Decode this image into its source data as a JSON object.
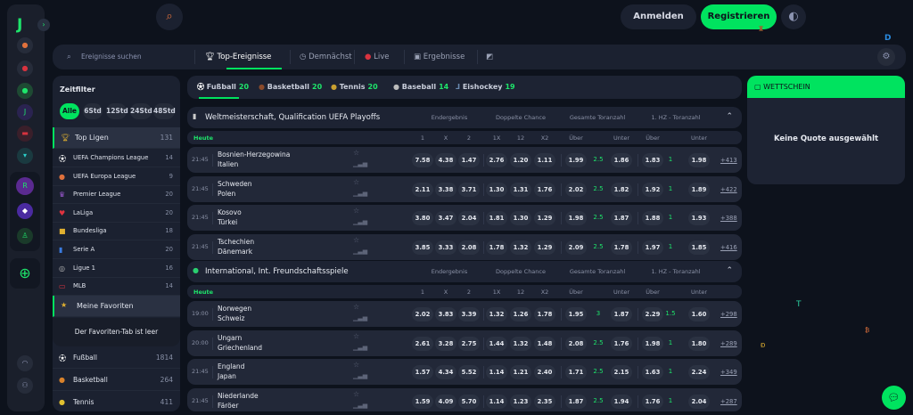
{
  "header": {
    "login": "Anmelden",
    "register": "Registrieren"
  },
  "nav": {
    "search_placeholder": "Ereignisse suchen",
    "tabs": [
      {
        "label": "Top-Ereignisse",
        "icon": "trophy-icon",
        "active": true
      },
      {
        "label": "Demnächst",
        "icon": "clock-icon"
      },
      {
        "label": "Live",
        "icon": "live-dot-icon"
      },
      {
        "label": "Ergebnisse",
        "icon": "results-icon"
      }
    ]
  },
  "sidebar": {
    "title": "Zeitfilter",
    "filters": [
      "Alle",
      "6Std",
      "12Std",
      "24Std",
      "48Std"
    ],
    "top_leagues": {
      "label": "Top Ligen",
      "count": "131"
    },
    "leagues": [
      {
        "name": "UEFA Champions League",
        "count": "14"
      },
      {
        "name": "UEFA Europa League",
        "count": "9"
      },
      {
        "name": "Premier League",
        "count": "20"
      },
      {
        "name": "LaLiga",
        "count": "20"
      },
      {
        "name": "Bundesliga",
        "count": "18"
      },
      {
        "name": "Serie A",
        "count": "20"
      },
      {
        "name": "Ligue 1",
        "count": "16"
      },
      {
        "name": "MLB",
        "count": "14"
      }
    ],
    "favorites": {
      "label": "Meine Favoriten",
      "empty": "Der Favoriten-Tab ist leer"
    },
    "sports": [
      {
        "name": "Fußball",
        "count": "1814"
      },
      {
        "name": "Basketball",
        "count": "264"
      },
      {
        "name": "Tennis",
        "count": "411"
      }
    ]
  },
  "sport_tabs": [
    {
      "name": "Fußball",
      "count": "20",
      "active": true
    },
    {
      "name": "Basketball",
      "count": "20"
    },
    {
      "name": "Tennis",
      "count": "20"
    },
    {
      "name": "Baseball",
      "count": "14"
    },
    {
      "name": "Eishockey",
      "count": "19"
    }
  ],
  "markets": [
    "Endergebnis",
    "Doppelte Chance",
    "Gesamte Toranzahl",
    "1. HZ - Toranzahl"
  ],
  "columns": [
    "1",
    "X",
    "2",
    "1X",
    "12",
    "X2",
    "Über",
    "Unter",
    "Über",
    "Unter"
  ],
  "today_label": "Heute",
  "sections": [
    {
      "title": "Weltmeisterschaft, Qualification UEFA Playoffs",
      "matches": [
        {
          "time": "21:45",
          "home": "Bosnien-Herzegowina",
          "away": "Italien",
          "odds": [
            "7.58",
            "4.38",
            "1.47",
            "2.76",
            "1.20",
            "1.11",
            "1.99",
            "2.5",
            "1.86",
            "1.83",
            "1",
            "1.98"
          ],
          "more": "+413"
        },
        {
          "time": "21:45",
          "home": "Schweden",
          "away": "Polen",
          "odds": [
            "2.11",
            "3.38",
            "3.71",
            "1.30",
            "1.31",
            "1.76",
            "2.02",
            "2.5",
            "1.82",
            "1.92",
            "1",
            "1.89"
          ],
          "more": "+422"
        },
        {
          "time": "21:45",
          "home": "Kosovo",
          "away": "Türkei",
          "odds": [
            "3.80",
            "3.47",
            "2.04",
            "1.81",
            "1.30",
            "1.29",
            "1.98",
            "2.5",
            "1.87",
            "1.88",
            "1",
            "1.93"
          ],
          "more": "+388"
        },
        {
          "time": "21:45",
          "home": "Tschechien",
          "away": "Dänemark",
          "odds": [
            "3.85",
            "3.33",
            "2.08",
            "1.78",
            "1.32",
            "1.29",
            "2.09",
            "2.5",
            "1.78",
            "1.97",
            "1",
            "1.85"
          ],
          "more": "+416"
        }
      ]
    },
    {
      "title": "International, Int. Freundschaftsspiele",
      "matches": [
        {
          "time": "19:00",
          "home": "Norwegen",
          "away": "Schweiz",
          "odds": [
            "2.02",
            "3.83",
            "3.39",
            "1.32",
            "1.26",
            "1.78",
            "1.95",
            "3",
            "1.87",
            "2.29",
            "1.5",
            "1.60"
          ],
          "more": "+298"
        },
        {
          "time": "20:00",
          "home": "Ungarn",
          "away": "Griechenland",
          "odds": [
            "2.61",
            "3.28",
            "2.75",
            "1.44",
            "1.32",
            "1.48",
            "2.08",
            "2.5",
            "1.76",
            "1.98",
            "1",
            "1.80"
          ],
          "more": "+289"
        },
        {
          "time": "21:45",
          "home": "England",
          "away": "Japan",
          "odds": [
            "1.57",
            "4.34",
            "5.52",
            "1.14",
            "1.21",
            "2.40",
            "1.71",
            "2.5",
            "2.15",
            "1.63",
            "1",
            "2.24"
          ],
          "more": "+349"
        },
        {
          "time": "21:45",
          "home": "Niederlande",
          "away": "Färöer",
          "odds": [
            "1.59",
            "4.09",
            "5.70",
            "1.14",
            "1.23",
            "2.35",
            "1.87",
            "2.5",
            "1.94",
            "1.76",
            "1",
            "2.04"
          ],
          "more": "+287"
        }
      ]
    }
  ],
  "betslip": {
    "title": "WETTSCHEIN",
    "empty": "Keine Quote ausgewählt"
  },
  "colors": {
    "accent": "#00e35f",
    "background": "#0d121c",
    "panel": "#1d2333"
  }
}
